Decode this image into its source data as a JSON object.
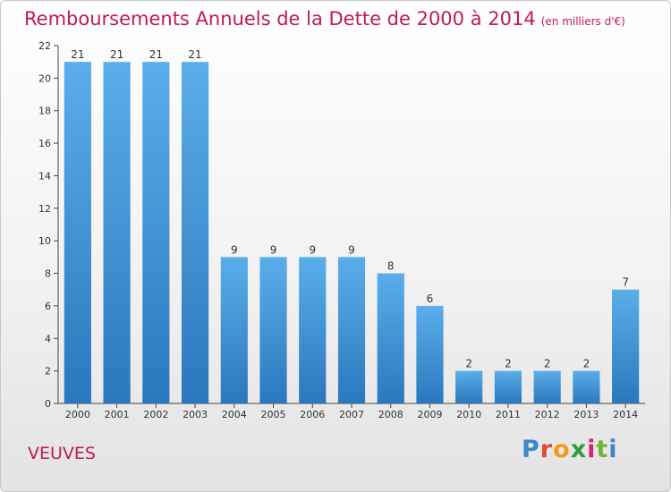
{
  "header": {
    "title": "Remboursements Annuels de la Dette de 2000 à 2014",
    "subtitle": "(en milliers d'€)"
  },
  "footer": {
    "place": "VEUVES",
    "logo": [
      "P",
      "r",
      "o",
      "x",
      "i",
      "t",
      "i"
    ]
  },
  "colors": {
    "accent": "#c2185b",
    "bar_light": "#5aaeea",
    "bar_dark": "#2a78bd"
  },
  "chart_data": {
    "type": "bar",
    "title": "Remboursements Annuels de la Dette de 2000 à 2014",
    "categories": [
      "2000",
      "2001",
      "2002",
      "2003",
      "2004",
      "2005",
      "2006",
      "2007",
      "2008",
      "2009",
      "2010",
      "2011",
      "2012",
      "2013",
      "2014"
    ],
    "values": [
      21,
      21,
      21,
      21,
      9,
      9,
      9,
      9,
      8,
      6,
      2,
      2,
      2,
      2,
      7
    ],
    "ylim": [
      0,
      22
    ],
    "yticks": [
      0,
      2,
      4,
      6,
      8,
      10,
      12,
      14,
      16,
      18,
      20,
      22
    ],
    "grid": false,
    "xlabel": "",
    "ylabel": ""
  }
}
